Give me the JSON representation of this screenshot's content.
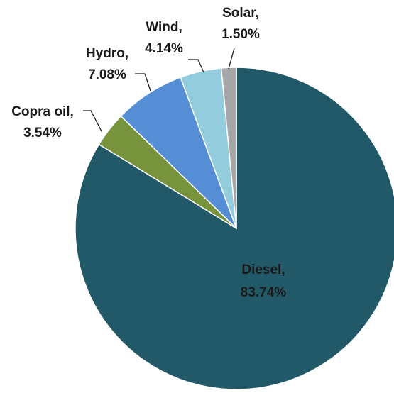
{
  "chart_data": {
    "type": "pie",
    "title": "",
    "slices": [
      {
        "name": "Diesel",
        "value": 83.74,
        "label_line1": "Diesel,",
        "label_line2": "83.74%",
        "color": "#215968"
      },
      {
        "name": "Copra oil",
        "value": 3.54,
        "label_line1": "Copra oil,",
        "label_line2": "3.54%",
        "color": "#77933C"
      },
      {
        "name": "Hydro",
        "value": 7.08,
        "label_line1": "Hydro,",
        "label_line2": "7.08%",
        "color": "#558ED5"
      },
      {
        "name": "Wind",
        "value": 4.14,
        "label_line1": "Wind,",
        "label_line2": "4.14%",
        "color": "#93CDDD"
      },
      {
        "name": "Solar",
        "value": 1.5,
        "label_line1": "Solar,",
        "label_line2": "1.50%",
        "color": "#A6A6A6"
      }
    ],
    "start_angle": "12 o'clock",
    "direction": "clockwise",
    "legend": "none"
  }
}
